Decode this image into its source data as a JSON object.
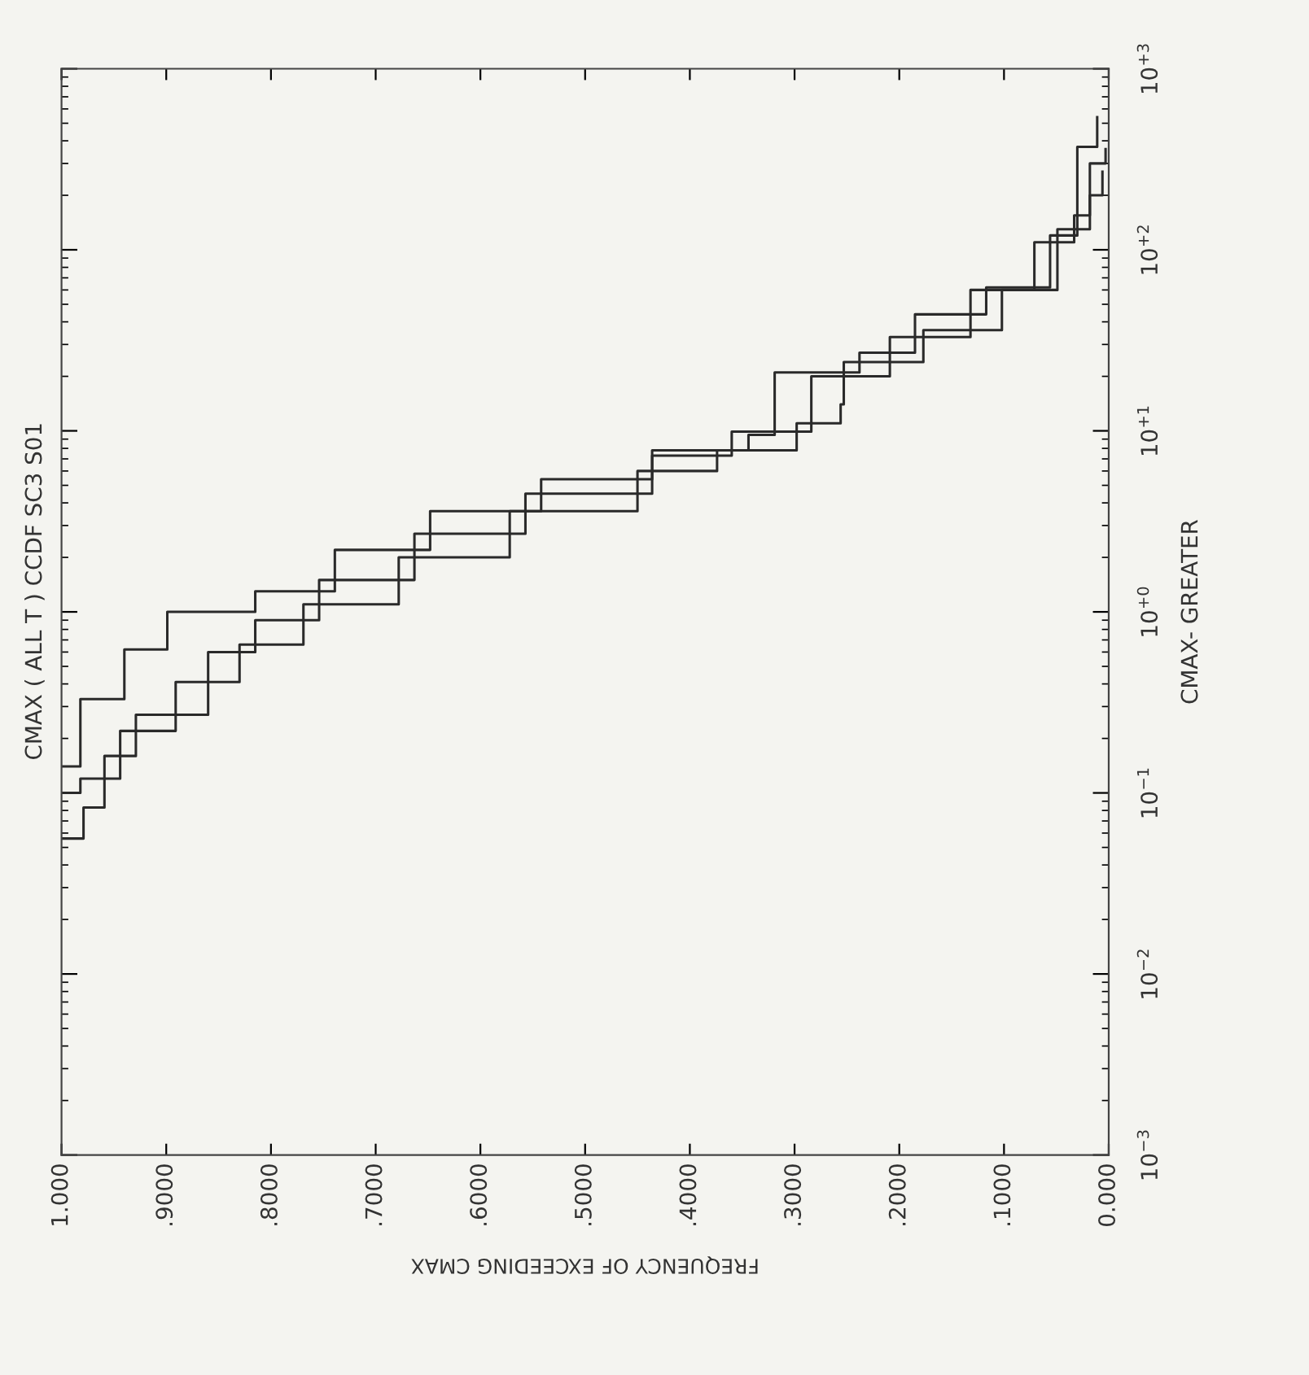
{
  "chart_data": {
    "type": "step",
    "title": "CMAX ( ALL T ) CCDF SC3 S01",
    "xlabel": "FREQUENCY OF EXCEEDING CMAX",
    "ylabel": "CMAX- GREATER",
    "log": "y",
    "grid": false,
    "line_style": "solid",
    "marker": "none",
    "xlim": [
      1.0,
      0.0
    ],
    "xticks": [
      {
        "value": 1.0,
        "label": "1.000"
      },
      {
        "value": 0.9,
        "label": ".9000"
      },
      {
        "value": 0.8,
        "label": ".8000"
      },
      {
        "value": 0.7,
        "label": ".7000"
      },
      {
        "value": 0.6,
        "label": ".6000"
      },
      {
        "value": 0.5,
        "label": ".5000"
      },
      {
        "value": 0.4,
        "label": ".4000"
      },
      {
        "value": 0.3,
        "label": ".3000"
      },
      {
        "value": 0.2,
        "label": ".2000"
      },
      {
        "value": 0.1,
        "label": ".1000"
      },
      {
        "value": 0.0,
        "label": "0.000"
      }
    ],
    "ylim": [
      0.001,
      1000
    ],
    "yticks": [
      {
        "value": 0.001,
        "label": "10$^{−3}$"
      },
      {
        "value": 0.01,
        "label": "10$^{−2}$"
      },
      {
        "value": 0.1,
        "label": "10$^{−1}$"
      },
      {
        "value": 1,
        "label": "10$^{+0}$"
      },
      {
        "value": 10,
        "label": "10$^{+1}$"
      },
      {
        "value": 100,
        "label": "10$^{+2}$"
      },
      {
        "value": 1000,
        "label": "10$^{+3}$"
      }
    ],
    "series": [
      {
        "color": "#2a2a2a",
        "x": [
          1.0,
          0.982,
          0.94,
          0.899,
          0.815,
          0.739,
          0.648,
          0.542,
          0.436,
          0.344,
          0.319,
          0.238,
          0.185,
          0.117,
          0.056,
          0.03,
          0.011
        ],
        "values": [
          0.14,
          0.33,
          0.62,
          1.0,
          1.3,
          2.2,
          3.6,
          5.4,
          7.8,
          9.5,
          21,
          27,
          44,
          62,
          120,
          370,
          540
        ]
      },
      {
        "color": "#2a2a2a",
        "x": [
          1.0,
          0.979,
          0.959,
          0.929,
          0.86,
          0.815,
          0.754,
          0.663,
          0.557,
          0.436,
          0.36,
          0.284,
          0.209,
          0.132,
          0.071,
          0.033,
          0.018,
          0.003
        ],
        "values": [
          0.056,
          0.083,
          0.16,
          0.27,
          0.6,
          0.9,
          1.5,
          2.7,
          4.5,
          7.3,
          9.9,
          20,
          33,
          60,
          110,
          155,
          300,
          360
        ]
      },
      {
        "color": "#2a2a2a",
        "x": [
          1.0,
          0.982,
          0.944,
          0.891,
          0.83,
          0.769,
          0.678,
          0.572,
          0.45,
          0.374,
          0.298,
          0.256,
          0.253,
          0.177,
          0.102,
          0.049,
          0.018,
          0.006
        ],
        "values": [
          0.1,
          0.12,
          0.22,
          0.41,
          0.66,
          1.1,
          2.0,
          3.6,
          6.0,
          7.8,
          11,
          14,
          24,
          36,
          60,
          130,
          200,
          270
        ]
      }
    ]
  }
}
